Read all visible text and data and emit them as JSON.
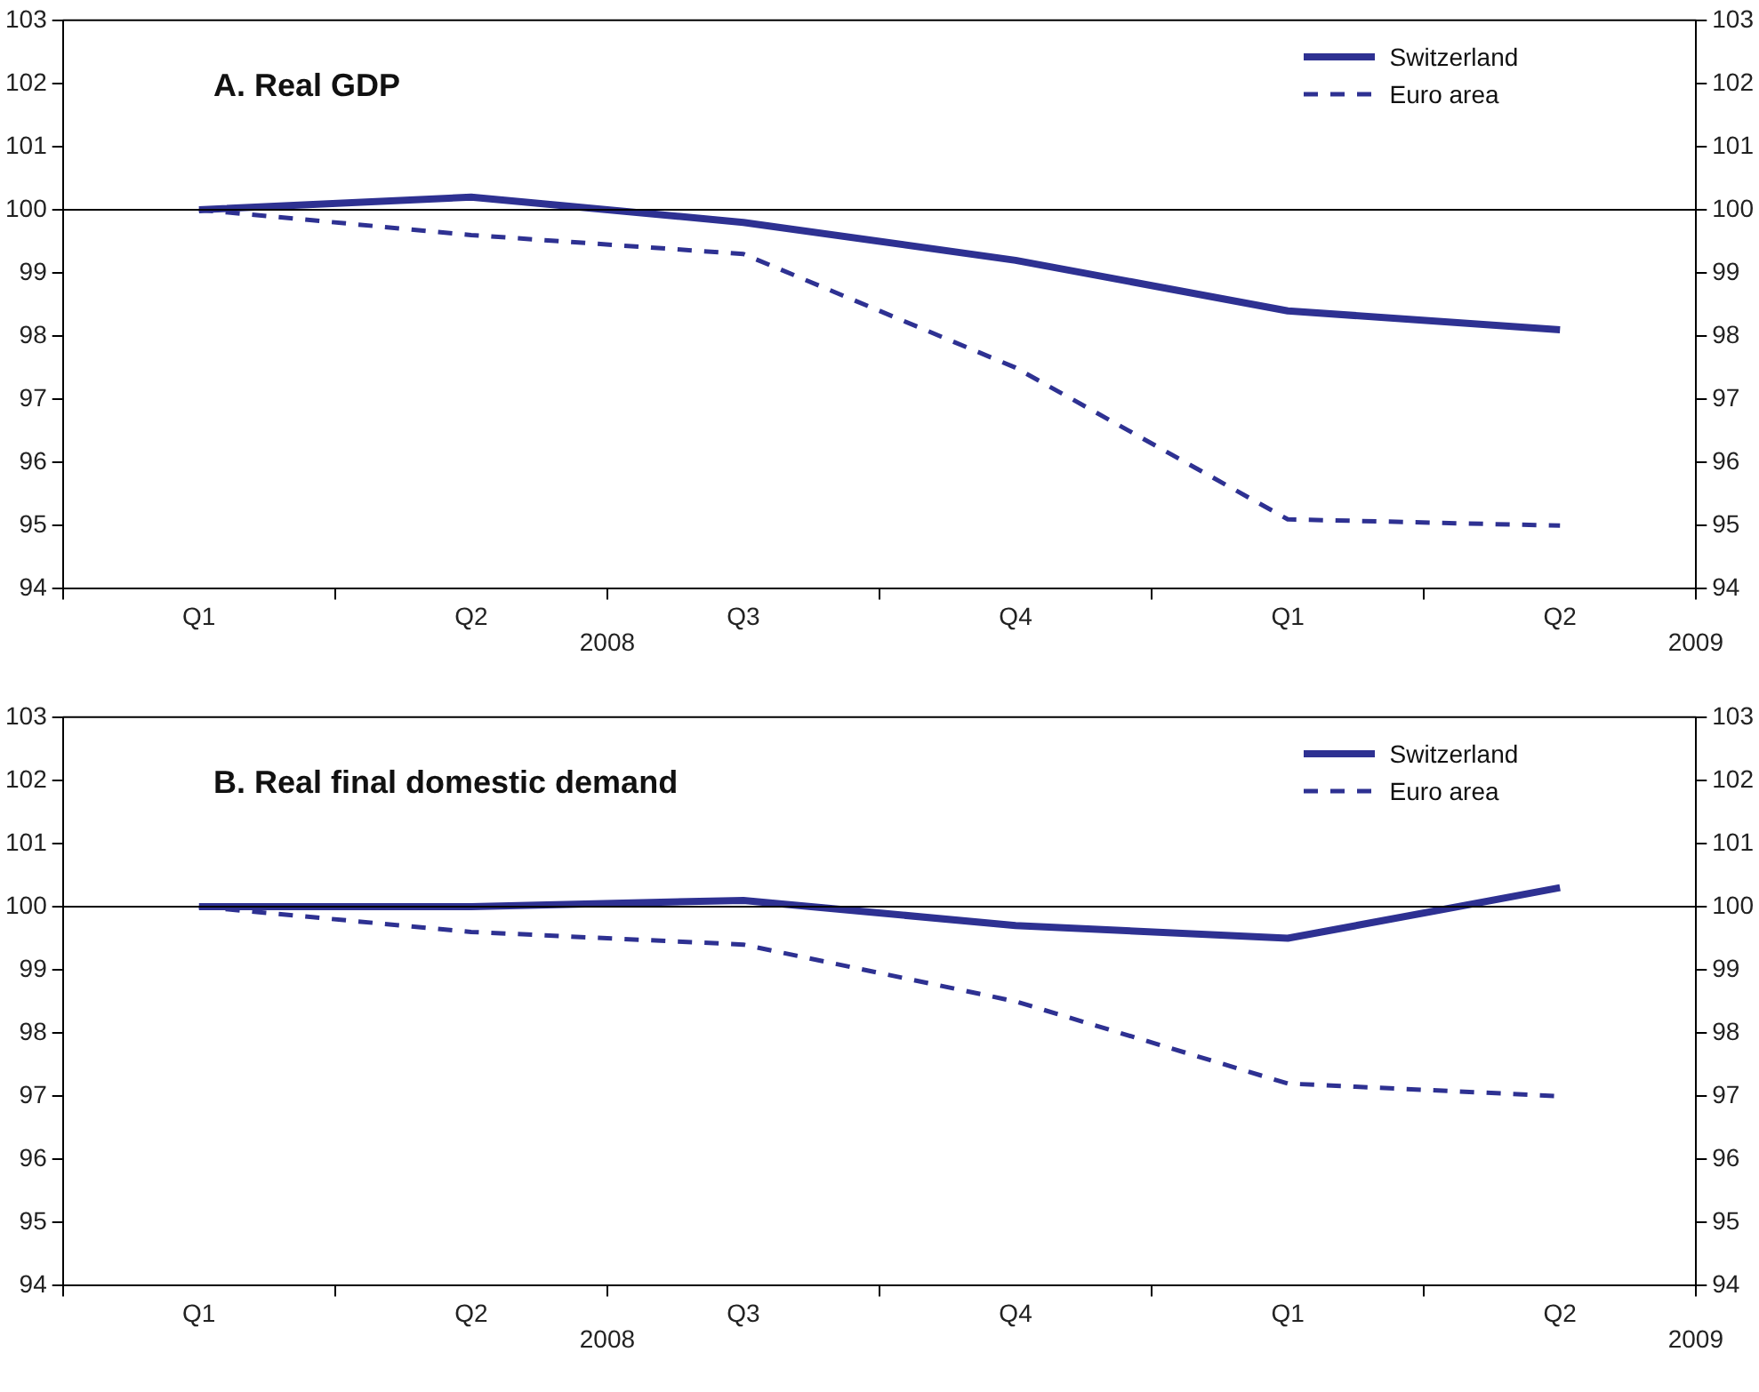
{
  "chart_data": [
    {
      "type": "line",
      "title": "A. Real GDP",
      "categories": [
        "Q1",
        "Q2",
        "Q3",
        "Q4",
        "Q1",
        "Q2"
      ],
      "series": [
        {
          "name": "Switzerland",
          "color": "#2e3192",
          "line_style": "solid",
          "values": [
            100,
            100.2,
            99.8,
            99.2,
            98.4,
            98.1
          ]
        },
        {
          "name": "Euro area",
          "color": "#2e3192",
          "line_style": "dashed",
          "values": [
            100,
            99.6,
            99.3,
            97.5,
            95.1,
            95.0
          ]
        }
      ],
      "ylim": [
        94,
        103
      ],
      "yticks": [
        94,
        95,
        96,
        97,
        98,
        99,
        100,
        101,
        102,
        103
      ],
      "y2lim": [
        94,
        103
      ],
      "y2ticks": [
        94,
        95,
        96,
        97,
        98,
        99,
        100,
        101,
        102,
        103
      ],
      "ref_lines": [
        {
          "axis": "y",
          "value": 100,
          "color": "#000000"
        }
      ],
      "annotations": [
        "2008",
        "2009"
      ],
      "grid": false,
      "legend": "top right",
      "marker": "none"
    },
    {
      "type": "line",
      "title": "B. Real final domestic demand",
      "categories": [
        "Q1",
        "Q2",
        "Q3",
        "Q4",
        "Q1",
        "Q2"
      ],
      "series": [
        {
          "name": "Switzerland",
          "color": "#2e3192",
          "line_style": "solid",
          "values": [
            100,
            100,
            100.1,
            99.7,
            99.5,
            100.3
          ]
        },
        {
          "name": "Euro area",
          "color": "#2e3192",
          "line_style": "dashed",
          "values": [
            100,
            99.6,
            99.4,
            98.5,
            97.2,
            97.0
          ]
        }
      ],
      "ylim": [
        94,
        103
      ],
      "yticks": [
        94,
        95,
        96,
        97,
        98,
        99,
        100,
        101,
        102,
        103
      ],
      "y2lim": [
        94,
        103
      ],
      "y2ticks": [
        94,
        95,
        96,
        97,
        98,
        99,
        100,
        101,
        102,
        103
      ],
      "ref_lines": [
        {
          "axis": "y",
          "value": 100,
          "color": "#000000"
        }
      ],
      "annotations": [
        "2008",
        "2009"
      ],
      "grid": false,
      "legend": "top right",
      "marker": "none"
    }
  ]
}
